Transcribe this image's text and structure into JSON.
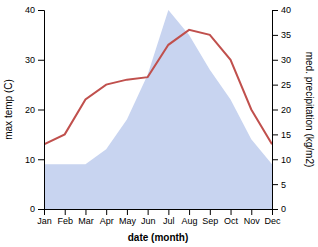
{
  "chart_data": {
    "type": "line",
    "categories": [
      "Jan",
      "Feb",
      "Mar",
      "Apr",
      "May",
      "Jun",
      "Jul",
      "Aug",
      "Sep",
      "Oct",
      "Nov",
      "Dec"
    ],
    "series": [
      {
        "type": "area",
        "axis": "y2",
        "color": "#c8d4f0",
        "values": [
          9.0,
          9.0,
          9.0,
          12.0,
          18.0,
          27.0,
          40.0,
          35.0,
          28.0,
          22.0,
          14.0,
          9.0
        ]
      },
      {
        "type": "line",
        "color": "#c0504d",
        "values": [
          13.0,
          15.0,
          22.0,
          25.0,
          26.0,
          26.5,
          33.0,
          36.0,
          35.0,
          30.0,
          20.0,
          13.0
        ]
      }
    ],
    "xlabel": "date (month)",
    "ylabel": "max temp (C)",
    "y2label": "med. precipitation (kg/m2)",
    "ylim": [
      0,
      40
    ],
    "yticks": [
      0,
      10,
      20,
      30,
      40
    ],
    "y2lim": [
      0,
      40
    ],
    "y2ticks": [
      0,
      5,
      10,
      15,
      20,
      25,
      30,
      35,
      40
    ],
    "grid": false
  }
}
